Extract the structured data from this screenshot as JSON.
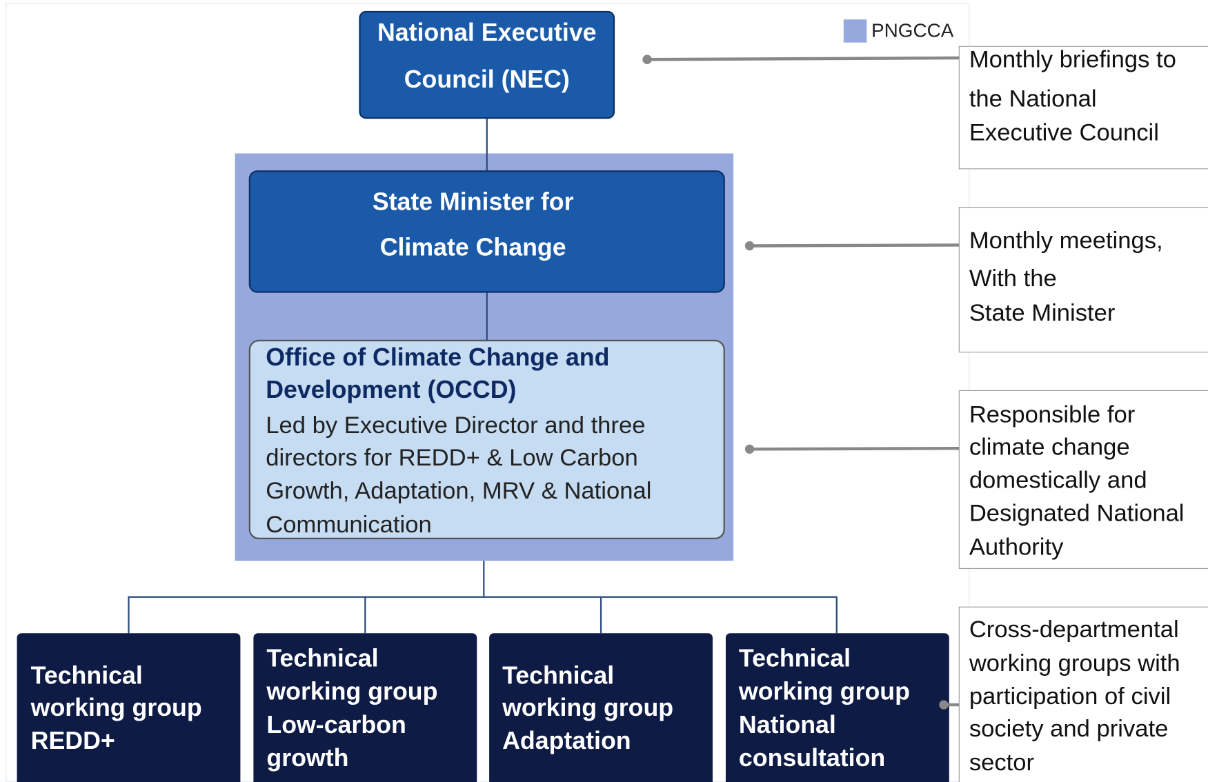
{
  "legend": {
    "label": "PNGCCA"
  },
  "nodes": [
    {
      "title": [
        "National Executive",
        "Council   (NEC)"
      ]
    },
    {
      "title": [
        "State  Minister  for",
        "Climate Change"
      ]
    },
    {
      "title": [
        "Office of Climate Change and",
        "Development (OCCD)"
      ],
      "body": [
        "Led by Executive Director and three",
        "directors for REDD+ & Low Carbon",
        "Growth, Adaptation, MRV & National",
        "Communication"
      ]
    },
    {
      "title": [
        "Technical",
        "working group",
        "REDD+"
      ]
    },
    {
      "title": [
        "Technical",
        "working group",
        "Low-carbon",
        "growth"
      ]
    },
    {
      "title": [
        "Technical",
        "working group",
        "Adaptation"
      ]
    },
    {
      "title": [
        "Technical",
        "working group",
        "National",
        "consultation"
      ]
    }
  ],
  "notes": [
    [
      "Monthly briefings to",
      "the National",
      "Executive Council"
    ],
    [
      "Monthly meetings,",
      "With the",
      "State Minister"
    ],
    [
      "Responsible for",
      "climate change",
      "domestically and",
      "Designated National",
      "Authority"
    ],
    [
      "Cross-departmental",
      "working groups with",
      "participation of civil",
      "society and private",
      "sector"
    ]
  ]
}
